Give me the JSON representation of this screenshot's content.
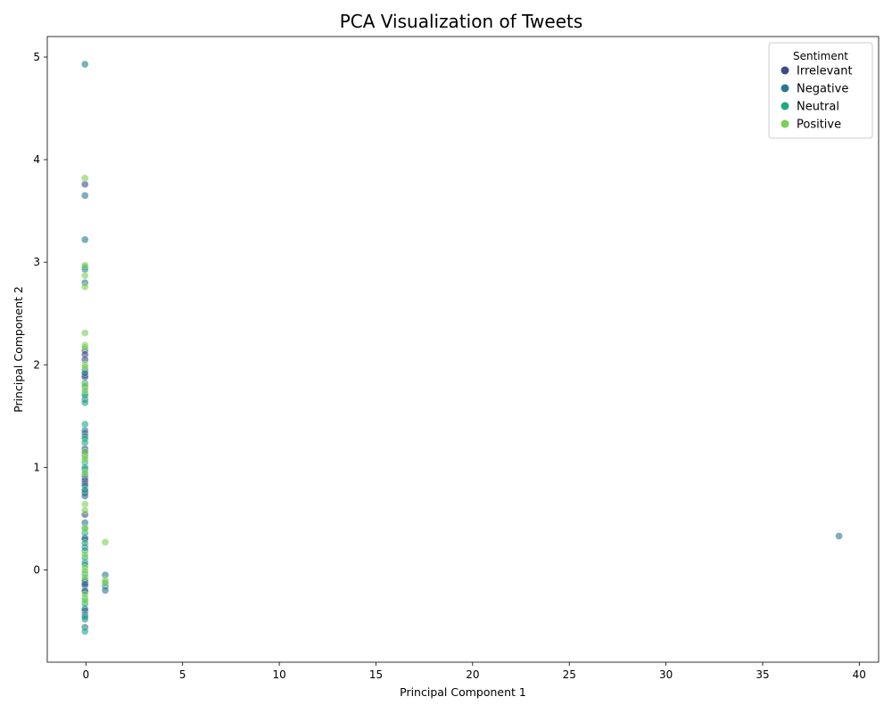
{
  "chart_data": {
    "type": "scatter",
    "title": "PCA Visualization of Tweets",
    "xlabel": "Principal Component 1",
    "ylabel": "Principal Component 2",
    "xlim": [
      -2,
      41
    ],
    "ylim": [
      -0.9,
      5.2
    ],
    "xticks": [
      0,
      5,
      10,
      15,
      20,
      25,
      30,
      35,
      40
    ],
    "yticks": [
      0,
      1,
      2,
      3,
      4,
      5
    ],
    "grid": false,
    "legend": {
      "title": "Sentiment",
      "placement": "top-right"
    },
    "series": [
      {
        "name": "Irrelevant",
        "color": "#3b4c85",
        "points": [
          [
            -0.05,
            3.76
          ],
          [
            -0.05,
            2.14
          ],
          [
            -0.05,
            2.1
          ],
          [
            -0.05,
            2.05
          ],
          [
            -0.05,
            1.9
          ],
          [
            -0.05,
            1.88
          ],
          [
            -0.05,
            1.33
          ],
          [
            -0.05,
            1.18
          ],
          [
            -0.05,
            1.12
          ],
          [
            -0.05,
            0.9
          ],
          [
            -0.05,
            0.87
          ],
          [
            -0.05,
            0.84
          ],
          [
            -0.05,
            0.77
          ],
          [
            -0.05,
            0.75
          ],
          [
            -0.05,
            0.54
          ],
          [
            -0.05,
            0.3
          ],
          [
            -0.05,
            -0.12
          ],
          [
            -0.05,
            -0.15
          ],
          [
            -0.05,
            -0.2
          ],
          [
            -0.05,
            -0.4
          ]
        ]
      },
      {
        "name": "Negative",
        "color": "#2a788e",
        "points": [
          [
            -0.05,
            4.93
          ],
          [
            -0.05,
            3.65
          ],
          [
            -0.05,
            3.22
          ],
          [
            -0.05,
            2.93
          ],
          [
            -0.05,
            2.8
          ],
          [
            -0.05,
            1.95
          ],
          [
            -0.05,
            1.92
          ],
          [
            -0.05,
            1.78
          ],
          [
            -0.05,
            1.66
          ],
          [
            -0.05,
            1.36
          ],
          [
            -0.05,
            1.3
          ],
          [
            -0.05,
            1.15
          ],
          [
            -0.05,
            0.98
          ],
          [
            -0.05,
            0.82
          ],
          [
            -0.05,
            0.72
          ],
          [
            -0.05,
            0.46
          ],
          [
            -0.05,
            0.31
          ],
          [
            -0.05,
            0.22
          ],
          [
            -0.05,
            0.07
          ],
          [
            -0.05,
            -0.1
          ],
          [
            -0.05,
            -0.14
          ],
          [
            -0.05,
            -0.21
          ],
          [
            -0.05,
            -0.38
          ],
          [
            -0.05,
            -0.44
          ],
          [
            -0.05,
            -0.48
          ],
          [
            -0.05,
            -0.56
          ],
          [
            1.0,
            -0.05
          ],
          [
            1.0,
            -0.16
          ],
          [
            1.0,
            -0.2
          ],
          [
            38.95,
            0.33
          ]
        ]
      },
      {
        "name": "Neutral",
        "color": "#22a884",
        "points": [
          [
            -0.05,
            2.95
          ],
          [
            -0.05,
            1.82
          ],
          [
            -0.05,
            1.72
          ],
          [
            -0.05,
            1.7
          ],
          [
            -0.05,
            1.63
          ],
          [
            -0.05,
            1.42
          ],
          [
            -0.05,
            1.28
          ],
          [
            -0.05,
            1.24
          ],
          [
            -0.05,
            1.05
          ],
          [
            -0.05,
            1.0
          ],
          [
            -0.05,
            0.93
          ],
          [
            -0.05,
            0.78
          ],
          [
            -0.05,
            0.41
          ],
          [
            -0.05,
            0.36
          ],
          [
            -0.05,
            0.26
          ],
          [
            -0.05,
            0.19
          ],
          [
            -0.05,
            0.12
          ],
          [
            -0.05,
            0.05
          ],
          [
            -0.05,
            -0.04
          ],
          [
            -0.05,
            -0.28
          ],
          [
            -0.05,
            -0.33
          ],
          [
            -0.05,
            -0.46
          ],
          [
            -0.05,
            -0.6
          ],
          [
            1.0,
            -0.13
          ]
        ]
      },
      {
        "name": "Positive",
        "color": "#7ad151",
        "points": [
          [
            -0.05,
            3.82
          ],
          [
            -0.05,
            2.97
          ],
          [
            -0.05,
            2.87
          ],
          [
            -0.05,
            2.76
          ],
          [
            -0.05,
            2.31
          ],
          [
            -0.05,
            2.19
          ],
          [
            -0.05,
            2.17
          ],
          [
            -0.05,
            2.0
          ],
          [
            -0.05,
            1.98
          ],
          [
            -0.05,
            1.8
          ],
          [
            -0.05,
            1.75
          ],
          [
            -0.05,
            1.15
          ],
          [
            -0.05,
            1.1
          ],
          [
            -0.05,
            1.08
          ],
          [
            -0.05,
            0.95
          ],
          [
            -0.05,
            0.64
          ],
          [
            -0.05,
            0.58
          ],
          [
            -0.05,
            0.4
          ],
          [
            -0.05,
            0.15
          ],
          [
            -0.05,
            0.02
          ],
          [
            -0.05,
            -0.01
          ],
          [
            -0.05,
            -0.07
          ],
          [
            -0.05,
            -0.24
          ],
          [
            -0.05,
            -0.3
          ],
          [
            1.0,
            0.27
          ],
          [
            1.0,
            -0.1
          ],
          [
            1.0,
            -0.12
          ]
        ]
      }
    ]
  }
}
